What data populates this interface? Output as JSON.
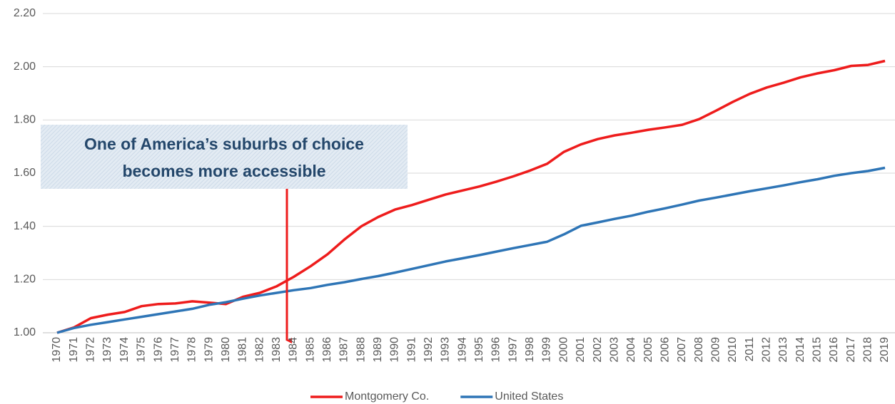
{
  "chart_data": {
    "type": "line",
    "annotation": [
      "One of America’s suburbs of choice",
      "becomes more accessible"
    ],
    "categories": [
      "1970",
      "1971",
      "1972",
      "1973",
      "1974",
      "1975",
      "1976",
      "1977",
      "1978",
      "1979",
      "1980",
      "1981",
      "1982",
      "1983",
      "1984",
      "1985",
      "1986",
      "1987",
      "1988",
      "1989",
      "1990",
      "1991",
      "1992",
      "1993",
      "1994",
      "1995",
      "1996",
      "1997",
      "1998",
      "1999",
      "2000",
      "2001",
      "2002",
      "2003",
      "2004",
      "2005",
      "2006",
      "2007",
      "2008",
      "2009",
      "2010",
      "2011",
      "2012",
      "2013",
      "2014",
      "2015",
      "2016",
      "2017",
      "2018",
      "2019"
    ],
    "series": [
      {
        "name": "Montgomery Co.",
        "color": "#ee1c1c",
        "values": [
          1.0,
          1.02,
          1.055,
          1.068,
          1.078,
          1.1,
          1.108,
          1.11,
          1.118,
          1.113,
          1.108,
          1.135,
          1.15,
          1.175,
          1.21,
          1.25,
          1.295,
          1.35,
          1.4,
          1.435,
          1.463,
          1.48,
          1.5,
          1.52,
          1.535,
          1.55,
          1.568,
          1.588,
          1.61,
          1.635,
          1.68,
          1.708,
          1.728,
          1.742,
          1.752,
          1.763,
          1.772,
          1.782,
          1.803,
          1.835,
          1.868,
          1.898,
          1.922,
          1.94,
          1.96,
          1.975,
          1.987,
          2.003,
          2.007,
          2.022
        ]
      },
      {
        "name": "United States",
        "color": "#2e75b6",
        "values": [
          1.0,
          1.018,
          1.03,
          1.04,
          1.05,
          1.06,
          1.07,
          1.08,
          1.09,
          1.105,
          1.115,
          1.128,
          1.14,
          1.15,
          1.16,
          1.168,
          1.18,
          1.19,
          1.202,
          1.213,
          1.226,
          1.24,
          1.254,
          1.268,
          1.28,
          1.292,
          1.305,
          1.318,
          1.33,
          1.342,
          1.37,
          1.402,
          1.415,
          1.428,
          1.44,
          1.455,
          1.468,
          1.482,
          1.497,
          1.508,
          1.52,
          1.532,
          1.543,
          1.554,
          1.566,
          1.577,
          1.59,
          1.6,
          1.608,
          1.62
        ]
      }
    ],
    "ylim": [
      1,
      2.2
    ],
    "yticks": [
      {
        "value": 1,
        "label": "1.00"
      },
      {
        "value": 1.2,
        "label": "1.20"
      },
      {
        "value": 1.4,
        "label": "1.40"
      },
      {
        "value": 1.6,
        "label": "1.60"
      },
      {
        "value": 1.8,
        "label": "1.80"
      },
      {
        "value": 2,
        "label": "2.00"
      },
      {
        "value": 2.2,
        "label": "2.20"
      }
    ],
    "grid": true,
    "legend": "bottom"
  }
}
